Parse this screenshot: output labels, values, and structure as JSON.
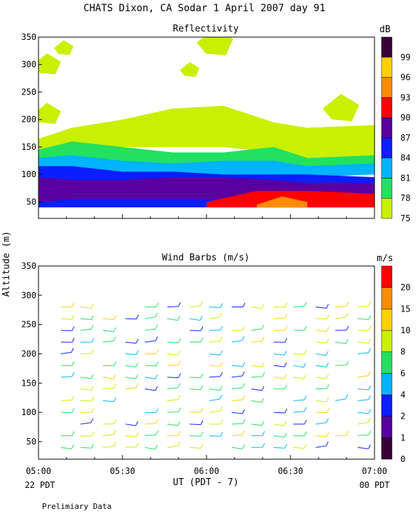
{
  "header": {
    "title": "CHATS Dixon, CA  Sodar    1 April 2007   day  91",
    "ylabel": "Altitude (m)",
    "xlabel": "UT  (PDT - 7)",
    "start_local": "22 PDT",
    "end_local": "00 PDT",
    "footnote": "Prelimiary Data"
  },
  "x_ticks": [
    "05:00",
    "05:30",
    "06:00",
    "06:30",
    "07:00"
  ],
  "y_ticks": [
    "50",
    "100",
    "150",
    "200",
    "250",
    "300",
    "350"
  ],
  "chart_data": [
    {
      "type": "heatmap",
      "title": "Reflectivity",
      "xlim": [
        5.0,
        7.0
      ],
      "ylim": [
        20,
        350
      ],
      "colorbar": {
        "unit": "dB",
        "levels": [
          "75",
          "78",
          "81",
          "84",
          "87",
          "90",
          "93",
          "96",
          "99"
        ],
        "colors": [
          "#c8f000",
          "#22e060",
          "#00b4ff",
          "#0a1eff",
          "#5a00a0",
          "#ff0000",
          "#ff8c00",
          "#ffd000",
          "#3a0038"
        ]
      },
      "contour_bands": [
        {
          "level": "75",
          "color": "#c8f000",
          "x": [
            5.0,
            5.2,
            5.5,
            5.8,
            6.1,
            6.4,
            6.6,
            7.0
          ],
          "y_bottom": [
            135,
            150,
            150,
            150,
            150,
            140,
            130,
            135
          ],
          "y_top": [
            165,
            185,
            200,
            220,
            225,
            195,
            185,
            190
          ]
        },
        {
          "level": "78",
          "color": "#22e060",
          "x": [
            5.0,
            5.2,
            5.5,
            5.8,
            6.1,
            6.4,
            6.6,
            7.0
          ],
          "y_bottom": [
            125,
            130,
            120,
            115,
            120,
            120,
            110,
            115
          ],
          "y_top": [
            145,
            160,
            150,
            140,
            140,
            150,
            130,
            135
          ]
        },
        {
          "level": "81",
          "color": "#00b4ff",
          "x": [
            5.0,
            5.2,
            5.5,
            5.8,
            6.1,
            6.4,
            6.6,
            7.0
          ],
          "y_bottom": [
            105,
            110,
            105,
            100,
            100,
            100,
            95,
            100
          ],
          "y_top": [
            130,
            135,
            125,
            120,
            125,
            125,
            115,
            120
          ]
        },
        {
          "level": "84",
          "color": "#0a1eff",
          "x": [
            5.0,
            5.2,
            5.5,
            5.8,
            6.1,
            6.4,
            6.6,
            7.0
          ],
          "y_bottom": [
            40,
            40,
            40,
            40,
            40,
            40,
            40,
            40
          ],
          "y_top": [
            115,
            115,
            105,
            105,
            100,
            100,
            100,
            95
          ]
        },
        {
          "level": "87",
          "color": "#5a00a0",
          "x": [
            5.0,
            5.2,
            5.5,
            5.8,
            6.1,
            6.4,
            6.6,
            7.0
          ],
          "y_bottom": [
            50,
            55,
            55,
            55,
            55,
            55,
            50,
            55
          ],
          "y_top": [
            95,
            90,
            90,
            95,
            95,
            90,
            85,
            85
          ]
        },
        {
          "level": "90",
          "color": "#ff0000",
          "x": [
            6.0,
            6.3,
            6.6,
            7.0
          ],
          "y_bottom": [
            40,
            40,
            40,
            40
          ],
          "y_top": [
            50,
            70,
            70,
            65
          ]
        },
        {
          "level": "93",
          "color": "#ff8c00",
          "x": [
            6.3,
            6.45,
            6.6
          ],
          "y_bottom": [
            40,
            40,
            40
          ],
          "y_top": [
            45,
            60,
            50
          ]
        }
      ],
      "patches_75": [
        {
          "x": 5.15,
          "y": 330
        },
        {
          "x": 5.05,
          "y": 300
        },
        {
          "x": 6.05,
          "y": 340
        },
        {
          "x": 5.9,
          "y": 290
        },
        {
          "x": 5.05,
          "y": 210
        },
        {
          "x": 6.8,
          "y": 220
        }
      ]
    },
    {
      "type": "scatter",
      "title": "Wind Barbs (m/s)",
      "xlim": [
        5.0,
        7.0
      ],
      "ylim": [
        20,
        350
      ],
      "colorbar": {
        "unit": "m/s",
        "levels": [
          "0",
          "1",
          "2",
          "4",
          "6",
          "8",
          "10",
          "15",
          "20"
        ],
        "colors": [
          "#3a0038",
          "#5a00a0",
          "#0a1eff",
          "#00b4ff",
          "#22e060",
          "#c8f000",
          "#ffd000",
          "#ff8c00",
          "#ff0000"
        ]
      },
      "barb_times": [
        "05:08",
        "05:15",
        "05:23",
        "05:31",
        "05:38",
        "05:46",
        "05:54",
        "06:01",
        "06:09",
        "06:16",
        "06:24",
        "06:31",
        "06:39",
        "06:46",
        "06:54"
      ],
      "barb_altitudes": [
        40,
        60,
        80,
        100,
        120,
        140,
        160,
        180,
        200,
        220,
        240,
        260,
        280
      ]
    }
  ]
}
